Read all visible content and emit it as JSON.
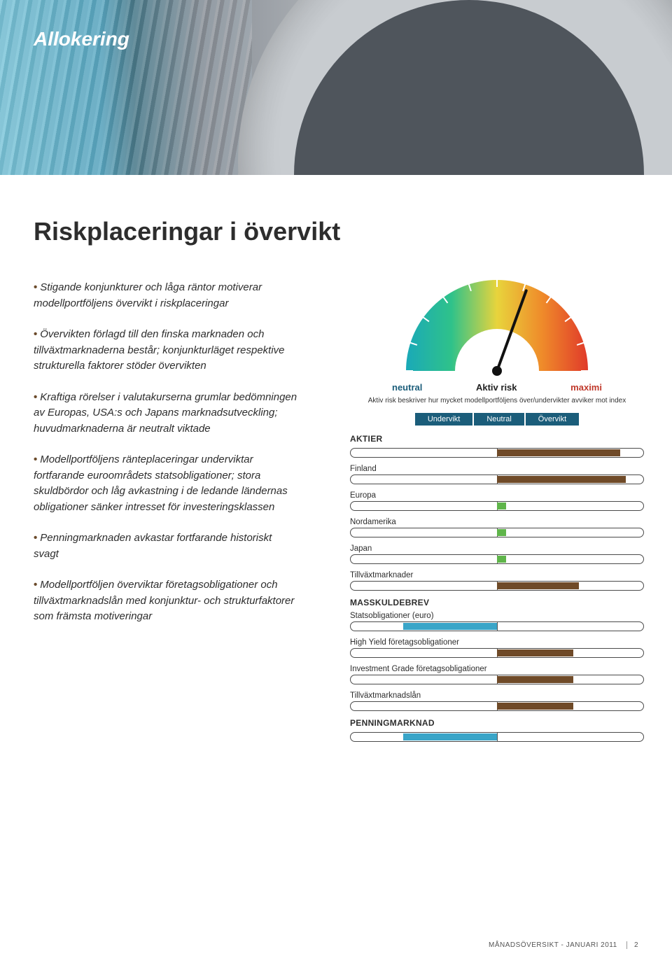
{
  "category": "Allokering",
  "title": "Riskplaceringar i övervikt",
  "bullets": [
    "Stigande konjunkturer och låga räntor motiverar modellportföljens övervikt i riskplaceringar",
    "Övervikten förlagd till den finska marknaden och tillväxtmarknaderna består; konjunkturläget respektive strukturella faktorer stöder övervikten",
    "Kraftiga rörelser i valutakurserna grumlar bedömningen av Europas, USA:s och Japans marknadsutveckling; huvudmarknaderna är neutralt viktade",
    "Modellportföljens ränteplaceringar underviktar fortfarande euroområdets statsobligationer; stora skuldbördor och låg avkastning i de ledande ländernas obligationer sänker intresset för investeringsklassen",
    "Penningmarknaden avkastar fortfarande historiskt svagt",
    "Modellportföljen överviktar företagsobligationer och tillväxtmarknadslån med konjunktur- och strukturfaktorer som främsta motiveringar"
  ],
  "gauge": {
    "label_left": "neutral",
    "label_center": "Aktiv risk",
    "label_right": "maximi",
    "subtext": "Aktiv risk beskriver hur mycket modellportföljens över/undervikter avviker mot index",
    "needle_angle_deg": 20,
    "tick_count": 11,
    "color_left": "#1aa9b8",
    "color_mid_left": "#2fc28a",
    "color_mid": "#e8d43c",
    "color_mid_right": "#ef8a2a",
    "color_right": "#e03a2a"
  },
  "legend": {
    "undervikt": "Undervikt",
    "neutral": "Neutral",
    "overvikt": "Övervikt",
    "bg_color": "#1b5d7a"
  },
  "colors": {
    "over_brown": "#6f4a28",
    "under_blue": "#3aa5c8",
    "neutral_green": "#5fb54a",
    "bullet_color": "#6b4a2a"
  },
  "sections": [
    {
      "header": "AKTIER",
      "header_bar": {
        "direction": "right",
        "length_pct": 42,
        "color": "#6f4a28"
      },
      "rows": [
        {
          "label": "Finland",
          "direction": "right",
          "length_pct": 44,
          "color": "#6f4a28"
        },
        {
          "label": "Europa",
          "direction": "right",
          "length_pct": 3,
          "color": "#5fb54a"
        },
        {
          "label": "Nordamerika",
          "direction": "right",
          "length_pct": 3,
          "color": "#5fb54a"
        },
        {
          "label": "Japan",
          "direction": "right",
          "length_pct": 3,
          "color": "#5fb54a"
        },
        {
          "label": "Tillväxtmarknader",
          "direction": "right",
          "length_pct": 28,
          "color": "#6f4a28"
        }
      ]
    },
    {
      "header": "MASSKULDEBREV",
      "header_bar": null,
      "rows": [
        {
          "label": "Statsobligationer (euro)",
          "direction": "left",
          "length_pct": 32,
          "color": "#3aa5c8"
        },
        {
          "label": "High Yield företagsobligationer",
          "direction": "right",
          "length_pct": 26,
          "color": "#6f4a28"
        },
        {
          "label": "Investment Grade företagsobligationer",
          "direction": "right",
          "length_pct": 26,
          "color": "#6f4a28"
        },
        {
          "label": "Tillväxtmarknadslån",
          "direction": "right",
          "length_pct": 26,
          "color": "#6f4a28"
        }
      ]
    },
    {
      "header": "PENNINGMARKNAD",
      "header_bar": {
        "direction": "left",
        "length_pct": 32,
        "color": "#3aa5c8"
      },
      "rows": []
    }
  ],
  "footer": {
    "text": "MÅNADSÖVERSIKT - JANUARI 2011",
    "page": "2"
  }
}
